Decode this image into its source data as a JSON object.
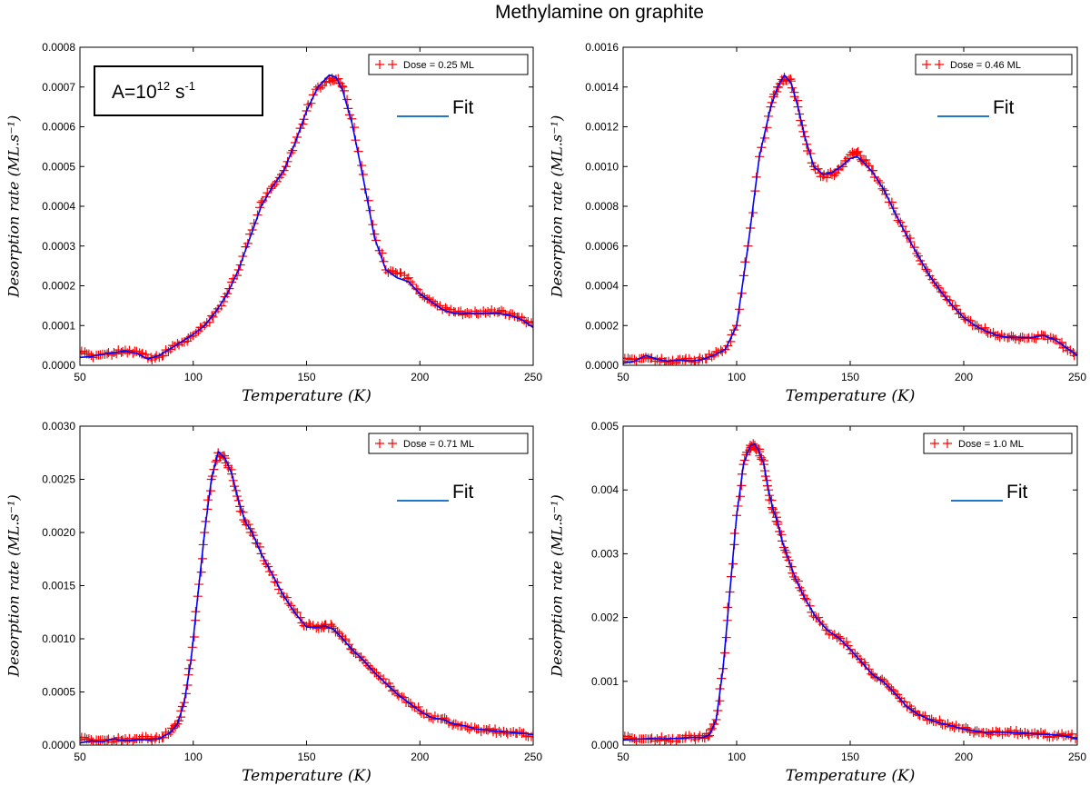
{
  "figure": {
    "title": "Methylamine on graphite",
    "prefactor_label": {
      "base": "A=10",
      "exponent": "12",
      "unit": " s",
      "unit_exponent": "-1"
    }
  },
  "colors": {
    "data": "#ff0000",
    "fit": "#0000ff",
    "fit_legend": "#1f77d0",
    "axis": "#000000"
  },
  "chart_data": [
    {
      "type": "scatter",
      "title": "",
      "xlabel": "Temperature (K)",
      "ylabel": "Desorption rate (ML.s⁻¹)",
      "xlim": [
        50,
        250
      ],
      "ylim": [
        0,
        0.0008
      ],
      "xticks": [
        "50",
        "100",
        "150",
        "200",
        "250"
      ],
      "yticks": [
        "0.0000",
        "0.0001",
        "0.0002",
        "0.0003",
        "0.0004",
        "0.0005",
        "0.0006",
        "0.0007",
        "0.0008"
      ],
      "legend": {
        "data_label": "Dose = 0.25 ML",
        "fit_label": "Fit",
        "placement": "top-right"
      },
      "series": [
        {
          "name": "Dose = 0.25 ML",
          "marker": "+",
          "x": [
            50,
            55,
            60,
            65,
            70,
            75,
            80,
            85,
            90,
            95,
            100,
            105,
            110,
            115,
            120,
            125,
            130,
            135,
            140,
            145,
            150,
            155,
            160,
            163,
            166,
            170,
            175,
            180,
            185,
            190,
            195,
            200,
            205,
            210,
            215,
            220,
            225,
            230,
            235,
            240,
            245,
            250
          ],
          "y": [
            3e-05,
            2.5e-05,
            2.8e-05,
            3.2e-05,
            3.8e-05,
            3.5e-05,
            1.8e-05,
            2e-05,
            4e-05,
            5.8e-05,
            7.5e-05,
            0.0001,
            0.000135,
            0.00018,
            0.00024,
            0.00033,
            0.00041,
            0.00045,
            0.00049,
            0.00056,
            0.00064,
            0.0007,
            0.00072,
            0.00072,
            0.0007,
            0.00062,
            0.00048,
            0.00033,
            0.00024,
            0.00023,
            0.00022,
            0.00018,
            0.00016,
            0.00014,
            0.000135,
            0.00013,
            0.00013,
            0.000135,
            0.000135,
            0.00013,
            0.00012,
            0.0001
          ]
        },
        {
          "name": "Fit",
          "style": "line",
          "x": [
            50,
            55,
            60,
            65,
            70,
            75,
            80,
            85,
            90,
            95,
            100,
            105,
            110,
            115,
            120,
            125,
            130,
            135,
            140,
            145,
            150,
            155,
            160,
            163,
            166,
            170,
            175,
            180,
            185,
            190,
            195,
            200,
            205,
            210,
            215,
            220,
            225,
            230,
            235,
            240,
            245,
            250
          ],
          "y": [
            2e-05,
            2.2e-05,
            2.8e-05,
            3.2e-05,
            3.6e-05,
            3e-05,
            1.6e-05,
            2.5e-05,
            4.2e-05,
            6e-05,
            7.8e-05,
            0.0001,
            0.000135,
            0.00018,
            0.00024,
            0.00032,
            0.0004,
            0.00045,
            0.00049,
            0.00056,
            0.00064,
            0.0007,
            0.00073,
            0.000725,
            0.00069,
            0.00061,
            0.00047,
            0.00032,
            0.00024,
            0.00022,
            0.00021,
            0.00018,
            0.00016,
            0.00014,
            0.00013,
            0.00013,
            0.00013,
            0.00013,
            0.00013,
            0.000125,
            0.000115,
            9.5e-05
          ]
        }
      ]
    },
    {
      "type": "scatter",
      "title": "",
      "xlabel": "Temperature (K)",
      "ylabel": "Desorption rate (ML.s⁻¹)",
      "xlim": [
        50,
        250
      ],
      "ylim": [
        0,
        0.0016
      ],
      "xticks": [
        "50",
        "100",
        "150",
        "200",
        "250"
      ],
      "yticks": [
        "0.0000",
        "0.0002",
        "0.0004",
        "0.0006",
        "0.0008",
        "0.0010",
        "0.0012",
        "0.0014",
        "0.0016"
      ],
      "legend": {
        "data_label": "Dose = 0.46 ML",
        "fit_label": "Fit",
        "placement": "top-right"
      },
      "series": [
        {
          "name": "Dose = 0.46 ML",
          "marker": "+",
          "x": [
            50,
            55,
            60,
            65,
            70,
            75,
            80,
            85,
            90,
            95,
            100,
            105,
            110,
            115,
            118,
            121,
            124,
            127,
            130,
            134,
            138,
            142,
            146,
            150,
            153,
            156,
            160,
            165,
            170,
            175,
            180,
            185,
            190,
            195,
            200,
            205,
            210,
            215,
            220,
            225,
            230,
            235,
            240,
            245,
            250
          ],
          "y": [
            2e-05,
            3e-05,
            4e-05,
            3e-05,
            2e-05,
            3e-05,
            2e-05,
            3e-05,
            5e-05,
            8e-05,
            0.0002,
            0.0006,
            0.00105,
            0.0013,
            0.0014,
            0.00145,
            0.00143,
            0.0013,
            0.00115,
            0.001,
            0.00095,
            0.00096,
            0.001,
            0.00106,
            0.00107,
            0.00103,
            0.00098,
            0.00088,
            0.00076,
            0.00065,
            0.00055,
            0.00045,
            0.00037,
            0.0003,
            0.00024,
            0.0002,
            0.00017,
            0.00015,
            0.00014,
            0.00014,
            0.00014,
            0.00015,
            0.00013,
            9e-05,
            5e-05
          ]
        },
        {
          "name": "Fit",
          "style": "line",
          "x": [
            50,
            55,
            60,
            65,
            70,
            75,
            80,
            85,
            90,
            95,
            100,
            105,
            110,
            115,
            118,
            121,
            124,
            127,
            130,
            134,
            138,
            142,
            146,
            150,
            153,
            156,
            160,
            165,
            170,
            175,
            180,
            185,
            190,
            195,
            200,
            205,
            210,
            215,
            220,
            225,
            230,
            235,
            240,
            245,
            250
          ],
          "y": [
            1e-05,
            2e-05,
            5e-05,
            3e-05,
            2e-05,
            2.5e-05,
            2e-05,
            3e-05,
            5e-05,
            8e-05,
            0.0002,
            0.0006,
            0.00105,
            0.0013,
            0.0014,
            0.00146,
            0.00142,
            0.0013,
            0.00115,
            0.001,
            0.00096,
            0.00097,
            0.001,
            0.00104,
            0.00105,
            0.00102,
            0.00097,
            0.00088,
            0.00076,
            0.00065,
            0.00055,
            0.00045,
            0.00037,
            0.0003,
            0.00024,
            0.0002,
            0.00017,
            0.00015,
            0.00014,
            0.00014,
            0.00014,
            0.00015,
            0.00013,
            9e-05,
            5e-05
          ]
        }
      ]
    },
    {
      "type": "scatter",
      "title": "",
      "xlabel": "Temperature (K)",
      "ylabel": "Desorption rate (ML.s⁻¹)",
      "xlim": [
        50,
        250
      ],
      "ylim": [
        0,
        0.003
      ],
      "xticks": [
        "50",
        "100",
        "150",
        "200",
        "250"
      ],
      "yticks": [
        "0.0000",
        "0.0005",
        "0.0010",
        "0.0015",
        "0.0020",
        "0.0025",
        "0.0030"
      ],
      "legend": {
        "data_label": "Dose = 0.71 ML",
        "fit_label": "Fit",
        "placement": "top-right"
      },
      "series": [
        {
          "name": "Dose = 0.71 ML",
          "marker": "+",
          "x": [
            50,
            55,
            60,
            65,
            70,
            75,
            80,
            85,
            90,
            93,
            96,
            99,
            102,
            105,
            108,
            111,
            114,
            117,
            120,
            123,
            126,
            130,
            135,
            140,
            145,
            150,
            155,
            158,
            162,
            166,
            170,
            175,
            180,
            185,
            190,
            195,
            200,
            205,
            210,
            215,
            220,
            225,
            230,
            235,
            240,
            245,
            250
          ],
          "y": [
            5e-05,
            5e-05,
            5e-05,
            5e-05,
            6e-05,
            6e-05,
            6e-05,
            6e-05,
            0.00012,
            0.0002,
            0.0004,
            0.0008,
            0.0014,
            0.002,
            0.0025,
            0.00275,
            0.0027,
            0.00255,
            0.0023,
            0.0021,
            0.002,
            0.0018,
            0.0016,
            0.0014,
            0.00125,
            0.00112,
            0.00112,
            0.00113,
            0.0011,
            0.001,
            0.0009,
            0.0008,
            0.00068,
            0.00058,
            0.00048,
            0.0004,
            0.00032,
            0.00026,
            0.00025,
            0.0002,
            0.00018,
            0.00015,
            0.00014,
            0.00013,
            0.00012,
            0.00011,
            0.0001
          ]
        },
        {
          "name": "Fit",
          "style": "line",
          "x": [
            50,
            55,
            60,
            65,
            70,
            75,
            80,
            85,
            90,
            93,
            96,
            99,
            102,
            105,
            108,
            111,
            114,
            117,
            120,
            123,
            126,
            130,
            135,
            140,
            145,
            150,
            155,
            158,
            162,
            166,
            170,
            175,
            180,
            185,
            190,
            195,
            200,
            205,
            210,
            215,
            220,
            225,
            230,
            235,
            240,
            245,
            250
          ],
          "y": [
            2e-05,
            4e-05,
            3e-05,
            6e-05,
            4e-05,
            5e-05,
            5e-05,
            6e-05,
            0.00012,
            0.0002,
            0.0004,
            0.0008,
            0.0014,
            0.002,
            0.0025,
            0.00276,
            0.0027,
            0.00255,
            0.0023,
            0.0021,
            0.002,
            0.0018,
            0.0016,
            0.0014,
            0.00124,
            0.00111,
            0.00111,
            0.00112,
            0.00109,
            0.001,
            0.0009,
            0.0008,
            0.00068,
            0.00058,
            0.00048,
            0.0004,
            0.00032,
            0.00026,
            0.00024,
            0.0002,
            0.00018,
            0.00015,
            0.00014,
            0.00013,
            0.00012,
            0.00011,
            0.0001
          ]
        }
      ]
    },
    {
      "type": "scatter",
      "title": "",
      "xlabel": "Temperature (K)",
      "ylabel": "Desorption rate (ML.s⁻¹)",
      "xlim": [
        50,
        250
      ],
      "ylim": [
        0,
        0.005
      ],
      "xticks": [
        "50",
        "100",
        "150",
        "200",
        "250"
      ],
      "yticks": [
        "0.000",
        "0.001",
        "0.002",
        "0.003",
        "0.004",
        "0.005"
      ],
      "legend": {
        "data_label": "Dose = 1.0 ML",
        "fit_label": "Fit",
        "placement": "top-right"
      },
      "series": [
        {
          "name": "Dose = 1.0 ML",
          "marker": "+",
          "x": [
            50,
            55,
            60,
            65,
            70,
            75,
            80,
            85,
            88,
            91,
            94,
            97,
            100,
            103,
            106,
            108,
            110,
            112,
            114,
            116,
            118,
            120,
            123,
            126,
            130,
            135,
            140,
            145,
            150,
            155,
            160,
            165,
            170,
            175,
            180,
            185,
            190,
            195,
            200,
            205,
            210,
            215,
            220,
            225,
            230,
            235,
            240,
            245,
            250
          ],
          "y": [
            0.0001,
            0.0001,
            0.0001,
            0.0001,
            0.0001,
            0.0001,
            0.00012,
            0.00012,
            0.00015,
            0.0004,
            0.0012,
            0.0024,
            0.0036,
            0.0044,
            0.0047,
            0.0047,
            0.0046,
            0.0044,
            0.004,
            0.0037,
            0.0035,
            0.0032,
            0.0029,
            0.0026,
            0.0023,
            0.002,
            0.0018,
            0.0017,
            0.0015,
            0.0013,
            0.0011,
            0.001,
            0.0008,
            0.0006,
            0.00048,
            0.0004,
            0.00034,
            0.0003,
            0.00026,
            0.00022,
            0.0002,
            0.0002,
            0.0002,
            0.0002,
            0.00018,
            0.00017,
            0.00016,
            0.00015,
            0.00012
          ]
        },
        {
          "name": "Fit",
          "style": "line",
          "x": [
            50,
            55,
            60,
            65,
            70,
            75,
            80,
            85,
            88,
            91,
            94,
            97,
            100,
            103,
            106,
            108,
            110,
            112,
            114,
            116,
            118,
            120,
            123,
            126,
            130,
            135,
            140,
            145,
            150,
            155,
            160,
            165,
            170,
            175,
            180,
            185,
            190,
            195,
            200,
            205,
            210,
            215,
            220,
            225,
            230,
            235,
            240,
            245,
            250
          ],
          "y": [
            8e-05,
            9e-05,
            0.0001,
            0.0001,
            0.0001,
            0.00011,
            0.00012,
            0.00012,
            0.00016,
            0.0004,
            0.0012,
            0.0024,
            0.0036,
            0.0044,
            0.0047,
            0.00472,
            0.0046,
            0.0044,
            0.004,
            0.0037,
            0.0035,
            0.0032,
            0.0029,
            0.0026,
            0.0023,
            0.002,
            0.0018,
            0.00168,
            0.0015,
            0.0013,
            0.0011,
            0.00098,
            0.0008,
            0.0006,
            0.00048,
            0.0004,
            0.00034,
            0.0003,
            0.00025,
            0.00022,
            0.0002,
            0.0002,
            0.0002,
            0.00019,
            0.00018,
            0.00017,
            0.00016,
            0.00014,
            0.0001
          ]
        }
      ]
    }
  ]
}
